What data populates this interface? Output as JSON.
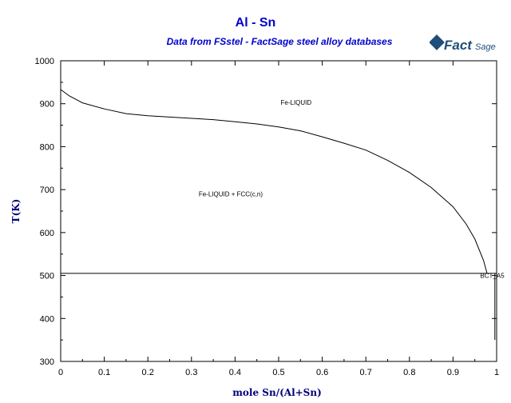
{
  "chart_data": {
    "type": "line",
    "title": "Al - Sn",
    "subtitle": "Data from FSstel - FactSage steel alloy databases",
    "xlabel": "mole Sn/(Al+Sn)",
    "ylabel": "T(K)",
    "xlim": [
      0,
      1
    ],
    "ylim": [
      300,
      1000
    ],
    "xticks": [
      "0",
      "0.1",
      "0.2",
      "0.3",
      "0.4",
      "0.5",
      "0.6",
      "0.7",
      "0.8",
      "0.9",
      "1"
    ],
    "yticks": [
      "300",
      "400",
      "500",
      "600",
      "700",
      "800",
      "900",
      "1000"
    ],
    "grid": false,
    "series": [
      {
        "values": [
          {
            "x": 0.0,
            "y": 933
          },
          {
            "x": 0.02,
            "y": 918
          },
          {
            "x": 0.05,
            "y": 902
          },
          {
            "x": 0.1,
            "y": 888
          },
          {
            "x": 0.15,
            "y": 877
          },
          {
            "x": 0.2,
            "y": 872
          },
          {
            "x": 0.25,
            "y": 869
          },
          {
            "x": 0.3,
            "y": 866
          },
          {
            "x": 0.35,
            "y": 863
          },
          {
            "x": 0.4,
            "y": 858
          },
          {
            "x": 0.45,
            "y": 853
          },
          {
            "x": 0.5,
            "y": 846
          },
          {
            "x": 0.55,
            "y": 837
          },
          {
            "x": 0.6,
            "y": 823
          },
          {
            "x": 0.65,
            "y": 808
          },
          {
            "x": 0.7,
            "y": 792
          },
          {
            "x": 0.75,
            "y": 768
          },
          {
            "x": 0.8,
            "y": 740
          },
          {
            "x": 0.85,
            "y": 705
          },
          {
            "x": 0.9,
            "y": 660
          },
          {
            "x": 0.93,
            "y": 620
          },
          {
            "x": 0.95,
            "y": 585
          },
          {
            "x": 0.97,
            "y": 535
          },
          {
            "x": 0.978,
            "y": 505
          }
        ]
      },
      {
        "values": [
          {
            "x": 0.0,
            "y": 505
          },
          {
            "x": 1.0,
            "y": 505
          }
        ]
      },
      {
        "values": [
          {
            "x": 0.0,
            "y": 933
          },
          {
            "x": 0.0,
            "y": 735
          }
        ]
      },
      {
        "values": [
          {
            "x": 0.996,
            "y": 505
          },
          {
            "x": 0.996,
            "y": 350
          }
        ]
      }
    ],
    "annotations": [
      {
        "text": "Fe-LIQUID",
        "x": 0.54,
        "y": 898
      },
      {
        "text": "Fe-LIQUID + FCC(c,n)",
        "x": 0.39,
        "y": 684
      },
      {
        "text": "BCT_A5",
        "x": 0.99,
        "y": 495
      }
    ]
  },
  "logo": {
    "text": "FactSage",
    "color": "#1f4e79"
  }
}
